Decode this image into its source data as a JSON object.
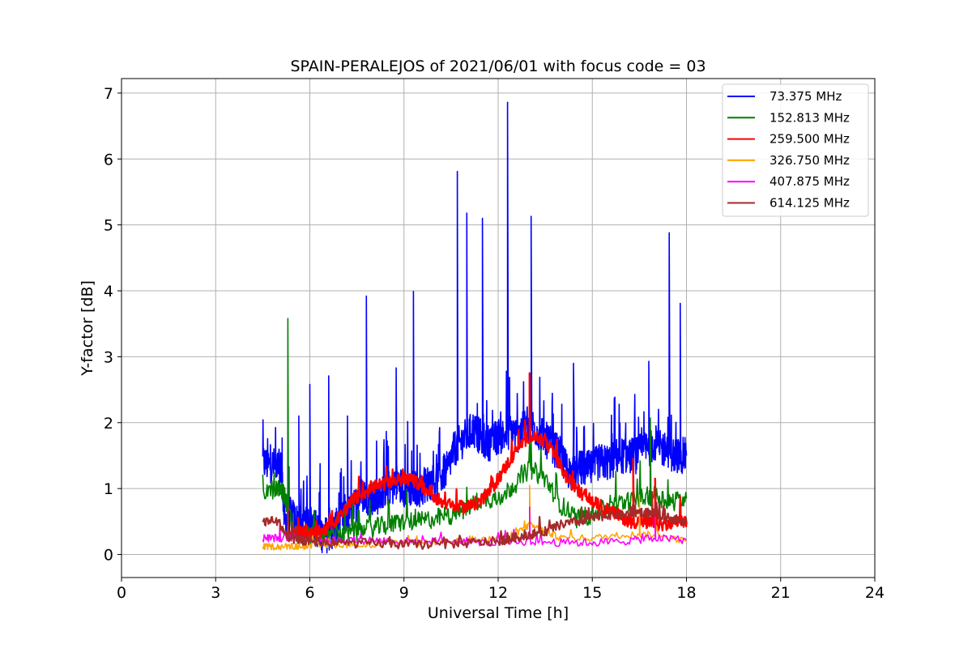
{
  "chart_data": {
    "type": "line",
    "title": "SPAIN-PERALEJOS of 2021/06/01 with focus code = 03",
    "xlabel": "Universal Time [h]",
    "ylabel": "Y-factor [dB]",
    "xlim": [
      0,
      24
    ],
    "ylim": [
      -0.35,
      7.22
    ],
    "xticks": [
      0,
      3,
      6,
      9,
      12,
      15,
      18,
      21,
      24
    ],
    "yticks": [
      0,
      1,
      2,
      3,
      4,
      5,
      6,
      7
    ],
    "grid": true,
    "legend_position": "top-right",
    "series": [
      {
        "name": "  73.375 MHz",
        "color": "#0000ff",
        "x": [
          4.5,
          4.7,
          4.9,
          5.1,
          5.2,
          5.4,
          5.6,
          5.8,
          6.0,
          6.2,
          6.4,
          6.6,
          6.8,
          7.0,
          7.2,
          7.4,
          7.6,
          7.8,
          8.0,
          8.2,
          8.4,
          8.6,
          8.8,
          9.0,
          9.2,
          9.4,
          9.6,
          9.8,
          10.0,
          10.2,
          10.4,
          10.6,
          10.8,
          11.0,
          11.2,
          11.4,
          11.6,
          11.8,
          12.0,
          12.2,
          12.4,
          12.6,
          12.8,
          13.0,
          13.2,
          13.4,
          13.6,
          13.8,
          14.0,
          14.2,
          14.4,
          14.6,
          14.8,
          15.0,
          15.2,
          15.4,
          15.6,
          15.8,
          16.0,
          16.2,
          16.4,
          16.6,
          16.8,
          17.0,
          17.2,
          17.4,
          17.6,
          17.8,
          18.0
        ],
        "y": [
          1.4,
          1.35,
          1.35,
          1.3,
          0.5,
          0.6,
          0.5,
          0.4,
          0.5,
          0.4,
          0.3,
          0.3,
          0.4,
          0.5,
          0.6,
          0.7,
          0.9,
          0.9,
          0.8,
          0.9,
          1.0,
          1.0,
          1.1,
          1.0,
          1.0,
          1.0,
          1.0,
          1.1,
          1.1,
          1.2,
          1.3,
          1.6,
          1.7,
          1.8,
          1.9,
          1.8,
          1.7,
          1.7,
          1.8,
          1.8,
          1.9,
          1.8,
          1.9,
          2.0,
          1.9,
          1.8,
          1.7,
          1.6,
          1.5,
          1.3,
          1.2,
          1.3,
          1.3,
          1.3,
          1.4,
          1.4,
          1.4,
          1.5,
          1.5,
          1.5,
          1.5,
          1.6,
          1.6,
          1.7,
          1.6,
          1.6,
          1.5,
          1.5,
          1.5
        ],
        "spikes": [
          [
            5.65,
            2.1
          ],
          [
            6.0,
            2.58
          ],
          [
            6.6,
            2.71
          ],
          [
            7.2,
            2.1
          ],
          [
            7.8,
            3.92
          ],
          [
            8.75,
            2.83
          ],
          [
            9.3,
            3.99
          ],
          [
            10.7,
            5.81
          ],
          [
            11.0,
            5.18
          ],
          [
            11.5,
            5.1
          ],
          [
            12.3,
            6.86
          ],
          [
            13.05,
            5.13
          ],
          [
            14.4,
            2.9
          ],
          [
            16.8,
            2.93
          ],
          [
            17.45,
            4.88
          ],
          [
            17.8,
            3.81
          ]
        ]
      },
      {
        "name": "152.813 MHz",
        "color": "#008000",
        "x": [
          4.5,
          5.0,
          5.2,
          5.5,
          6.0,
          6.5,
          7.0,
          7.5,
          8.0,
          8.5,
          9.0,
          9.5,
          10.0,
          10.5,
          11.0,
          11.5,
          12.0,
          12.5,
          13.0,
          13.5,
          14.0,
          14.5,
          15.0,
          15.5,
          16.0,
          16.5,
          17.0,
          17.5,
          18.0
        ],
        "y": [
          0.95,
          1.0,
          0.9,
          0.3,
          0.3,
          0.3,
          0.3,
          0.35,
          0.4,
          0.45,
          0.5,
          0.5,
          0.55,
          0.6,
          0.7,
          0.85,
          0.85,
          1.05,
          1.3,
          1.15,
          0.75,
          0.55,
          0.6,
          0.7,
          0.8,
          0.85,
          0.9,
          0.8,
          0.85
        ],
        "spikes": [
          [
            5.3,
            3.58
          ],
          [
            13.05,
            1.75
          ],
          [
            16.85,
            2.07
          ]
        ]
      },
      {
        "name": "259.500 MHz",
        "color": "#ff0000",
        "x": [
          5.3,
          5.6,
          6.0,
          6.3,
          6.6,
          7.0,
          7.4,
          7.8,
          8.2,
          8.6,
          9.0,
          9.4,
          9.8,
          10.2,
          10.6,
          11.0,
          11.4,
          11.8,
          12.2,
          12.6,
          13.0,
          13.4,
          13.8,
          14.2,
          14.6,
          15.0,
          15.4,
          15.8,
          16.2,
          16.6,
          17.0,
          17.4,
          17.8,
          18.0
        ],
        "y": [
          0.35,
          0.35,
          0.3,
          0.35,
          0.4,
          0.6,
          0.85,
          0.95,
          1.05,
          1.1,
          1.15,
          1.1,
          0.95,
          0.8,
          0.72,
          0.72,
          0.8,
          1.0,
          1.3,
          1.6,
          1.8,
          1.75,
          1.5,
          1.15,
          0.95,
          0.8,
          0.7,
          0.6,
          0.5,
          0.5,
          0.45,
          0.45,
          0.5,
          0.5
        ],
        "spikes": [
          [
            13.0,
            2.75
          ],
          [
            16.3,
            1.45
          ],
          [
            17.0,
            1.15
          ]
        ]
      },
      {
        "name": "326.750 MHz",
        "color": "#ffa500",
        "x": [
          4.5,
          5.0,
          5.5,
          6.0,
          7.0,
          8.0,
          9.0,
          10.0,
          11.0,
          12.0,
          12.5,
          13.0,
          13.5,
          14.0,
          15.0,
          16.0,
          17.0,
          18.0
        ],
        "y": [
          0.12,
          0.12,
          0.12,
          0.12,
          0.15,
          0.15,
          0.17,
          0.18,
          0.2,
          0.25,
          0.3,
          0.45,
          0.35,
          0.25,
          0.25,
          0.3,
          0.3,
          0.2
        ],
        "spikes": [
          [
            13.0,
            1.05
          ],
          [
            16.5,
            0.9
          ]
        ]
      },
      {
        "name": "407.875 MHz",
        "color": "#ff00ff",
        "x": [
          4.5,
          5.0,
          5.5,
          6.0,
          7.0,
          8.0,
          9.0,
          10.0,
          11.0,
          12.0,
          13.0,
          14.0,
          15.0,
          16.0,
          17.0,
          18.0
        ],
        "y": [
          0.25,
          0.25,
          0.25,
          0.22,
          0.22,
          0.22,
          0.2,
          0.2,
          0.2,
          0.18,
          0.2,
          0.18,
          0.18,
          0.2,
          0.25,
          0.22
        ],
        "spikes": [
          [
            5.3,
            0.45
          ],
          [
            13.0,
            0.72
          ],
          [
            17.0,
            0.6
          ]
        ]
      },
      {
        "name": "614.125 MHz",
        "color": "#a52a2a",
        "x": [
          4.5,
          5.0,
          5.3,
          5.6,
          6.0,
          7.0,
          8.0,
          9.0,
          10.0,
          11.0,
          12.0,
          12.5,
          13.0,
          13.5,
          14.0,
          14.5,
          15.0,
          15.5,
          16.0,
          16.5,
          17.0,
          17.5,
          18.0
        ],
        "y": [
          0.5,
          0.5,
          0.25,
          0.22,
          0.2,
          0.17,
          0.17,
          0.15,
          0.15,
          0.17,
          0.2,
          0.25,
          0.3,
          0.35,
          0.45,
          0.5,
          0.55,
          0.6,
          0.6,
          0.65,
          0.6,
          0.55,
          0.5
        ],
        "spikes": [
          [
            5.3,
            0.72
          ],
          [
            16.9,
            0.95
          ]
        ]
      }
    ]
  }
}
